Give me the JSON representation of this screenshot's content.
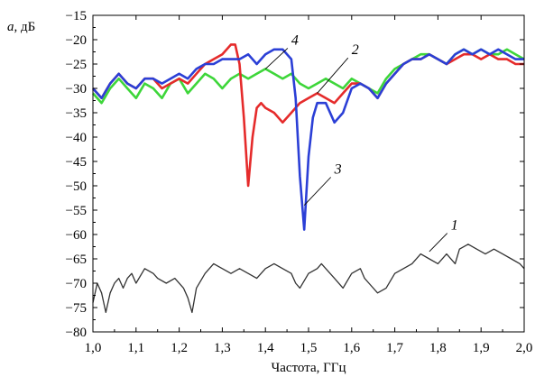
{
  "chart_data": {
    "type": "line",
    "title": "",
    "xlabel": "Частота, ГГц",
    "ylabel_var": "a",
    "ylabel_unit": ", дБ",
    "xlim": [
      1.0,
      2.0
    ],
    "ylim": [
      -80,
      -15
    ],
    "x_ticks": [
      "1,0",
      "1,1",
      "1,2",
      "1,3",
      "1,4",
      "1,5",
      "1,6",
      "1,7",
      "1,8",
      "1,9",
      "2,0"
    ],
    "y_ticks": [
      "−15",
      "−20",
      "−25",
      "−30",
      "−35",
      "−40",
      "−45",
      "−50",
      "−55",
      "−60",
      "−65",
      "−70",
      "−75",
      "−80"
    ],
    "grid": false,
    "legend": "none",
    "series": [
      {
        "id": "1",
        "color": "#333333",
        "points": [
          [
            1.0,
            -74
          ],
          [
            1.01,
            -70
          ],
          [
            1.02,
            -72
          ],
          [
            1.03,
            -76
          ],
          [
            1.04,
            -72
          ],
          [
            1.05,
            -70
          ],
          [
            1.06,
            -69
          ],
          [
            1.07,
            -71
          ],
          [
            1.08,
            -69
          ],
          [
            1.09,
            -68
          ],
          [
            1.1,
            -70
          ],
          [
            1.12,
            -67
          ],
          [
            1.14,
            -68
          ],
          [
            1.15,
            -69
          ],
          [
            1.17,
            -70
          ],
          [
            1.19,
            -69
          ],
          [
            1.21,
            -71
          ],
          [
            1.22,
            -73
          ],
          [
            1.23,
            -76
          ],
          [
            1.24,
            -71
          ],
          [
            1.26,
            -68
          ],
          [
            1.28,
            -66
          ],
          [
            1.3,
            -67
          ],
          [
            1.32,
            -68
          ],
          [
            1.34,
            -67
          ],
          [
            1.36,
            -68
          ],
          [
            1.38,
            -69
          ],
          [
            1.4,
            -67
          ],
          [
            1.42,
            -66
          ],
          [
            1.44,
            -67
          ],
          [
            1.46,
            -68
          ],
          [
            1.47,
            -70
          ],
          [
            1.48,
            -71
          ],
          [
            1.5,
            -68
          ],
          [
            1.52,
            -67
          ],
          [
            1.53,
            -66
          ],
          [
            1.54,
            -67
          ],
          [
            1.56,
            -69
          ],
          [
            1.58,
            -71
          ],
          [
            1.6,
            -68
          ],
          [
            1.62,
            -67
          ],
          [
            1.63,
            -69
          ],
          [
            1.64,
            -70
          ],
          [
            1.66,
            -72
          ],
          [
            1.68,
            -71
          ],
          [
            1.7,
            -68
          ],
          [
            1.72,
            -67
          ],
          [
            1.74,
            -66
          ],
          [
            1.76,
            -64
          ],
          [
            1.78,
            -65
          ],
          [
            1.8,
            -66
          ],
          [
            1.82,
            -64
          ],
          [
            1.84,
            -66
          ],
          [
            1.85,
            -63
          ],
          [
            1.87,
            -62
          ],
          [
            1.89,
            -63
          ],
          [
            1.91,
            -64
          ],
          [
            1.93,
            -63
          ],
          [
            1.95,
            -64
          ],
          [
            1.97,
            -65
          ],
          [
            1.99,
            -66
          ],
          [
            2.0,
            -67
          ]
        ]
      },
      {
        "id": "2",
        "color": "#e52b2b",
        "points": [
          [
            1.0,
            -30
          ],
          [
            1.02,
            -32
          ],
          [
            1.04,
            -29
          ],
          [
            1.06,
            -27
          ],
          [
            1.08,
            -29
          ],
          [
            1.1,
            -30
          ],
          [
            1.12,
            -28
          ],
          [
            1.14,
            -28
          ],
          [
            1.16,
            -30
          ],
          [
            1.18,
            -29
          ],
          [
            1.2,
            -28
          ],
          [
            1.22,
            -29
          ],
          [
            1.24,
            -27
          ],
          [
            1.26,
            -25
          ],
          [
            1.28,
            -24
          ],
          [
            1.3,
            -23
          ],
          [
            1.32,
            -21
          ],
          [
            1.33,
            -21
          ],
          [
            1.34,
            -25
          ],
          [
            1.35,
            -36
          ],
          [
            1.36,
            -50
          ],
          [
            1.37,
            -40
          ],
          [
            1.38,
            -34
          ],
          [
            1.39,
            -33
          ],
          [
            1.4,
            -34
          ],
          [
            1.42,
            -35
          ],
          [
            1.44,
            -37
          ],
          [
            1.46,
            -35
          ],
          [
            1.48,
            -33
          ],
          [
            1.5,
            -32
          ],
          [
            1.52,
            -31
          ],
          [
            1.54,
            -32
          ],
          [
            1.56,
            -33
          ],
          [
            1.58,
            -31
          ],
          [
            1.6,
            -29
          ],
          [
            1.62,
            -29
          ],
          [
            1.64,
            -30
          ],
          [
            1.66,
            -32
          ],
          [
            1.68,
            -29
          ],
          [
            1.7,
            -27
          ],
          [
            1.72,
            -25
          ],
          [
            1.74,
            -24
          ],
          [
            1.76,
            -24
          ],
          [
            1.78,
            -23
          ],
          [
            1.8,
            -24
          ],
          [
            1.82,
            -25
          ],
          [
            1.84,
            -24
          ],
          [
            1.86,
            -23
          ],
          [
            1.88,
            -23
          ],
          [
            1.9,
            -24
          ],
          [
            1.92,
            -23
          ],
          [
            1.94,
            -24
          ],
          [
            1.96,
            -24
          ],
          [
            1.98,
            -25
          ],
          [
            2.0,
            -25
          ]
        ]
      },
      {
        "id": "3",
        "color": "#2b3fd6",
        "points": [
          [
            1.0,
            -30
          ],
          [
            1.02,
            -32
          ],
          [
            1.04,
            -29
          ],
          [
            1.06,
            -27
          ],
          [
            1.08,
            -29
          ],
          [
            1.1,
            -30
          ],
          [
            1.12,
            -28
          ],
          [
            1.14,
            -28
          ],
          [
            1.16,
            -29
          ],
          [
            1.18,
            -28
          ],
          [
            1.2,
            -27
          ],
          [
            1.22,
            -28
          ],
          [
            1.24,
            -26
          ],
          [
            1.26,
            -25
          ],
          [
            1.28,
            -25
          ],
          [
            1.3,
            -24
          ],
          [
            1.32,
            -24
          ],
          [
            1.34,
            -24
          ],
          [
            1.36,
            -23
          ],
          [
            1.38,
            -25
          ],
          [
            1.4,
            -23
          ],
          [
            1.42,
            -22
          ],
          [
            1.44,
            -22
          ],
          [
            1.46,
            -24
          ],
          [
            1.47,
            -32
          ],
          [
            1.48,
            -48
          ],
          [
            1.49,
            -59
          ],
          [
            1.5,
            -44
          ],
          [
            1.51,
            -36
          ],
          [
            1.52,
            -33
          ],
          [
            1.54,
            -33
          ],
          [
            1.56,
            -37
          ],
          [
            1.58,
            -35
          ],
          [
            1.6,
            -30
          ],
          [
            1.62,
            -29
          ],
          [
            1.64,
            -30
          ],
          [
            1.66,
            -32
          ],
          [
            1.68,
            -29
          ],
          [
            1.7,
            -27
          ],
          [
            1.72,
            -25
          ],
          [
            1.74,
            -24
          ],
          [
            1.76,
            -24
          ],
          [
            1.78,
            -23
          ],
          [
            1.8,
            -24
          ],
          [
            1.82,
            -25
          ],
          [
            1.84,
            -23
          ],
          [
            1.86,
            -22
          ],
          [
            1.88,
            -23
          ],
          [
            1.9,
            -22
          ],
          [
            1.92,
            -23
          ],
          [
            1.94,
            -22
          ],
          [
            1.96,
            -23
          ],
          [
            1.98,
            -24
          ],
          [
            2.0,
            -24
          ]
        ]
      },
      {
        "id": "4",
        "color": "#3ed63a",
        "points": [
          [
            1.0,
            -31
          ],
          [
            1.02,
            -33
          ],
          [
            1.04,
            -30
          ],
          [
            1.06,
            -28
          ],
          [
            1.08,
            -30
          ],
          [
            1.1,
            -32
          ],
          [
            1.12,
            -29
          ],
          [
            1.14,
            -30
          ],
          [
            1.16,
            -32
          ],
          [
            1.18,
            -29
          ],
          [
            1.2,
            -28
          ],
          [
            1.22,
            -31
          ],
          [
            1.24,
            -29
          ],
          [
            1.26,
            -27
          ],
          [
            1.28,
            -28
          ],
          [
            1.3,
            -30
          ],
          [
            1.32,
            -28
          ],
          [
            1.34,
            -27
          ],
          [
            1.36,
            -28
          ],
          [
            1.38,
            -27
          ],
          [
            1.4,
            -26
          ],
          [
            1.42,
            -27
          ],
          [
            1.44,
            -28
          ],
          [
            1.46,
            -27
          ],
          [
            1.48,
            -29
          ],
          [
            1.5,
            -30
          ],
          [
            1.52,
            -29
          ],
          [
            1.54,
            -28
          ],
          [
            1.56,
            -29
          ],
          [
            1.58,
            -30
          ],
          [
            1.6,
            -28
          ],
          [
            1.62,
            -29
          ],
          [
            1.64,
            -30
          ],
          [
            1.66,
            -31
          ],
          [
            1.68,
            -28
          ],
          [
            1.7,
            -26
          ],
          [
            1.72,
            -25
          ],
          [
            1.74,
            -24
          ],
          [
            1.76,
            -23
          ],
          [
            1.78,
            -23
          ],
          [
            1.8,
            -24
          ],
          [
            1.82,
            -25
          ],
          [
            1.84,
            -23
          ],
          [
            1.86,
            -22
          ],
          [
            1.88,
            -23
          ],
          [
            1.9,
            -22
          ],
          [
            1.92,
            -23
          ],
          [
            1.94,
            -23
          ],
          [
            1.96,
            -22
          ],
          [
            1.98,
            -23
          ],
          [
            2.0,
            -24
          ]
        ]
      }
    ],
    "annotations": [
      {
        "label": "1",
        "series": "1",
        "point": [
          1.78,
          -63.5
        ],
        "text_at": [
          1.83,
          -59
        ]
      },
      {
        "label": "2",
        "series": "2",
        "point": [
          1.52,
          -31
        ],
        "text_at": [
          1.6,
          -23
        ]
      },
      {
        "label": "3",
        "series": "3",
        "point": [
          1.49,
          -54
        ],
        "text_at": [
          1.56,
          -47.5
        ]
      },
      {
        "label": "4",
        "series": "4",
        "point": [
          1.4,
          -26
        ],
        "text_at": [
          1.46,
          -21
        ]
      }
    ]
  }
}
